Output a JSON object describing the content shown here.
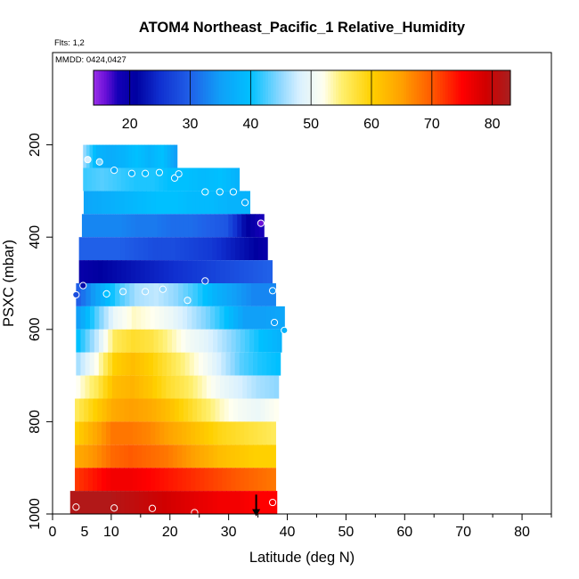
{
  "chart_data": {
    "type": "heatmap",
    "title": "ATOM4 Northeast_Pacific_1 Relative_Humidity",
    "flights_label": "Flts: 1,2",
    "dates_label": "MMDD: 0424,0427",
    "xlabel": "Latitude (deg N)",
    "ylabel": "PSXC (mbar)",
    "xlim": [
      0,
      85
    ],
    "ylim": [
      1000,
      0
    ],
    "xticks_major": [
      0,
      10,
      20,
      30,
      40,
      50,
      60,
      70,
      80
    ],
    "xticks_extra": [
      5
    ],
    "xticks_minor": [
      15,
      25,
      35,
      45,
      55,
      65,
      75,
      85
    ],
    "yticks": [
      200,
      400,
      600,
      800,
      1000
    ],
    "colorbar": {
      "range": [
        14,
        83
      ],
      "ticks": [
        20,
        30,
        40,
        50,
        60,
        70,
        80
      ],
      "dividers": [
        20,
        30,
        40,
        50,
        60,
        70,
        80
      ],
      "stops": [
        [
          14,
          "#9a2fe8"
        ],
        [
          16,
          "#6a10d8"
        ],
        [
          18,
          "#1500b8"
        ],
        [
          21,
          "#0000a0"
        ],
        [
          25,
          "#1030d0"
        ],
        [
          30,
          "#2060e8"
        ],
        [
          35,
          "#10a0f8"
        ],
        [
          40,
          "#00c0ff"
        ],
        [
          45,
          "#90d8ff"
        ],
        [
          48,
          "#d8f0ff"
        ],
        [
          52,
          "#fffff0"
        ],
        [
          55,
          "#fff070"
        ],
        [
          60,
          "#ffd000"
        ],
        [
          65,
          "#ffa000"
        ],
        [
          70,
          "#ff5a00"
        ],
        [
          75,
          "#ff0000"
        ],
        [
          79,
          "#d00000"
        ],
        [
          83,
          "#a82020"
        ]
      ]
    },
    "pressure_bands": [
      {
        "p": 225,
        "x0": 5.2,
        "x1": 21.2,
        "rh": [
          45,
          38,
          37,
          38,
          40,
          38,
          40,
          35
        ]
      },
      {
        "p": 275,
        "x0": 5.2,
        "x1": 31.8,
        "rh": [
          42,
          43,
          42,
          41,
          41,
          40,
          40,
          39,
          40,
          38
        ]
      },
      {
        "p": 325,
        "x0": 5.3,
        "x1": 33.6,
        "rh": [
          36,
          37,
          38,
          39,
          40,
          40,
          39,
          39,
          38,
          38
        ]
      },
      {
        "p": 375,
        "x0": 5.0,
        "x1": 36.0,
        "rh": [
          33,
          33,
          33,
          32,
          32,
          31,
          31,
          30,
          29,
          22,
          18
        ]
      },
      {
        "p": 425,
        "x0": 4.5,
        "x1": 36.6,
        "rh": [
          30,
          30,
          30,
          29,
          28,
          28,
          27,
          26,
          24,
          22,
          20
        ]
      },
      {
        "p": 475,
        "x0": 4.5,
        "x1": 37.4,
        "rh": [
          20,
          21,
          22,
          23,
          24,
          25,
          26,
          27,
          28,
          29,
          30
        ]
      },
      {
        "p": 525,
        "x0": 4.0,
        "x1": 38.0,
        "rh": [
          30,
          36,
          42,
          46,
          47,
          45,
          42,
          38,
          35,
          33,
          33
        ]
      },
      {
        "p": 575,
        "x0": 4.0,
        "x1": 39.5,
        "rh": [
          35,
          43,
          50,
          53,
          52,
          50,
          47,
          44,
          40,
          35,
          35,
          36
        ]
      },
      {
        "p": 625,
        "x0": 4.0,
        "x1": 39.0,
        "rh": [
          40,
          47,
          56,
          58,
          57,
          54,
          51,
          49,
          46,
          43,
          40,
          38
        ]
      },
      {
        "p": 675,
        "x0": 4.0,
        "x1": 38.8,
        "rh": [
          46,
          52,
          60,
          62,
          60,
          57,
          54,
          51,
          47,
          43,
          41,
          40
        ]
      },
      {
        "p": 725,
        "x0": 4.0,
        "x1": 38.5,
        "rh": [
          52,
          56,
          62,
          63,
          61,
          58,
          56,
          53,
          50,
          48,
          46,
          45
        ]
      },
      {
        "p": 775,
        "x0": 3.8,
        "x1": 38.5,
        "rh": [
          56,
          60,
          64,
          65,
          64,
          62,
          59,
          56,
          53,
          51,
          50,
          52
        ]
      },
      {
        "p": 825,
        "x0": 3.8,
        "x1": 38.0,
        "rh": [
          60,
          64,
          68,
          68,
          67,
          65,
          63,
          61,
          59,
          58,
          57,
          56
        ]
      },
      {
        "p": 875,
        "x0": 3.8,
        "x1": 38.0,
        "rh": [
          64,
          66,
          69,
          70,
          69,
          68,
          66,
          64,
          62,
          61,
          60,
          60
        ]
      },
      {
        "p": 925,
        "x0": 3.8,
        "x1": 38.0,
        "rh": [
          72,
          74,
          76,
          76,
          75,
          74,
          73,
          72,
          71,
          70,
          69,
          68
        ]
      },
      {
        "p": 975,
        "x0": 3.0,
        "x1": 38.2,
        "rh": [
          82,
          82,
          82,
          81,
          80,
          79,
          78,
          77,
          76,
          76,
          75,
          75
        ]
      }
    ],
    "observations": [
      {
        "lat": 6.0,
        "p": 232,
        "rh": 48
      },
      {
        "lat": 8.0,
        "p": 237,
        "rh": 44
      },
      {
        "lat": 10.5,
        "p": 255,
        "rh": 37
      },
      {
        "lat": 13.5,
        "p": 262,
        "rh": 38
      },
      {
        "lat": 15.8,
        "p": 262,
        "rh": 39
      },
      {
        "lat": 18.2,
        "p": 260,
        "rh": 40
      },
      {
        "lat": 20.8,
        "p": 272,
        "rh": 38
      },
      {
        "lat": 21.5,
        "p": 263,
        "rh": 38
      },
      {
        "lat": 26.0,
        "p": 302,
        "rh": 40
      },
      {
        "lat": 28.5,
        "p": 302,
        "rh": 39
      },
      {
        "lat": 30.8,
        "p": 302,
        "rh": 38
      },
      {
        "lat": 32.8,
        "p": 325,
        "rh": 37
      },
      {
        "lat": 35.5,
        "p": 370,
        "rh": 16
      },
      {
        "lat": 5.2,
        "p": 505,
        "rh": 22
      },
      {
        "lat": 4.0,
        "p": 525,
        "rh": 28
      },
      {
        "lat": 26.0,
        "p": 495,
        "rh": 28
      },
      {
        "lat": 9.2,
        "p": 523,
        "rh": 40
      },
      {
        "lat": 12.0,
        "p": 518,
        "rh": 44
      },
      {
        "lat": 15.8,
        "p": 518,
        "rh": 46
      },
      {
        "lat": 18.8,
        "p": 513,
        "rh": 45
      },
      {
        "lat": 23.0,
        "p": 537,
        "rh": 44
      },
      {
        "lat": 37.5,
        "p": 516,
        "rh": 34
      },
      {
        "lat": 37.8,
        "p": 585,
        "rh": 35
      },
      {
        "lat": 39.5,
        "p": 602,
        "rh": 38
      },
      {
        "lat": 4.0,
        "p": 985,
        "rh": 82
      },
      {
        "lat": 10.5,
        "p": 987,
        "rh": 82
      },
      {
        "lat": 17.0,
        "p": 988,
        "rh": 79
      },
      {
        "lat": 24.2,
        "p": 997,
        "rh": 78
      },
      {
        "lat": 37.5,
        "p": 975,
        "rh": 76
      }
    ],
    "annotations": [
      {
        "type": "arrow-down",
        "lat": 34.7,
        "p_from": 958,
        "p_to": 1005
      }
    ]
  }
}
